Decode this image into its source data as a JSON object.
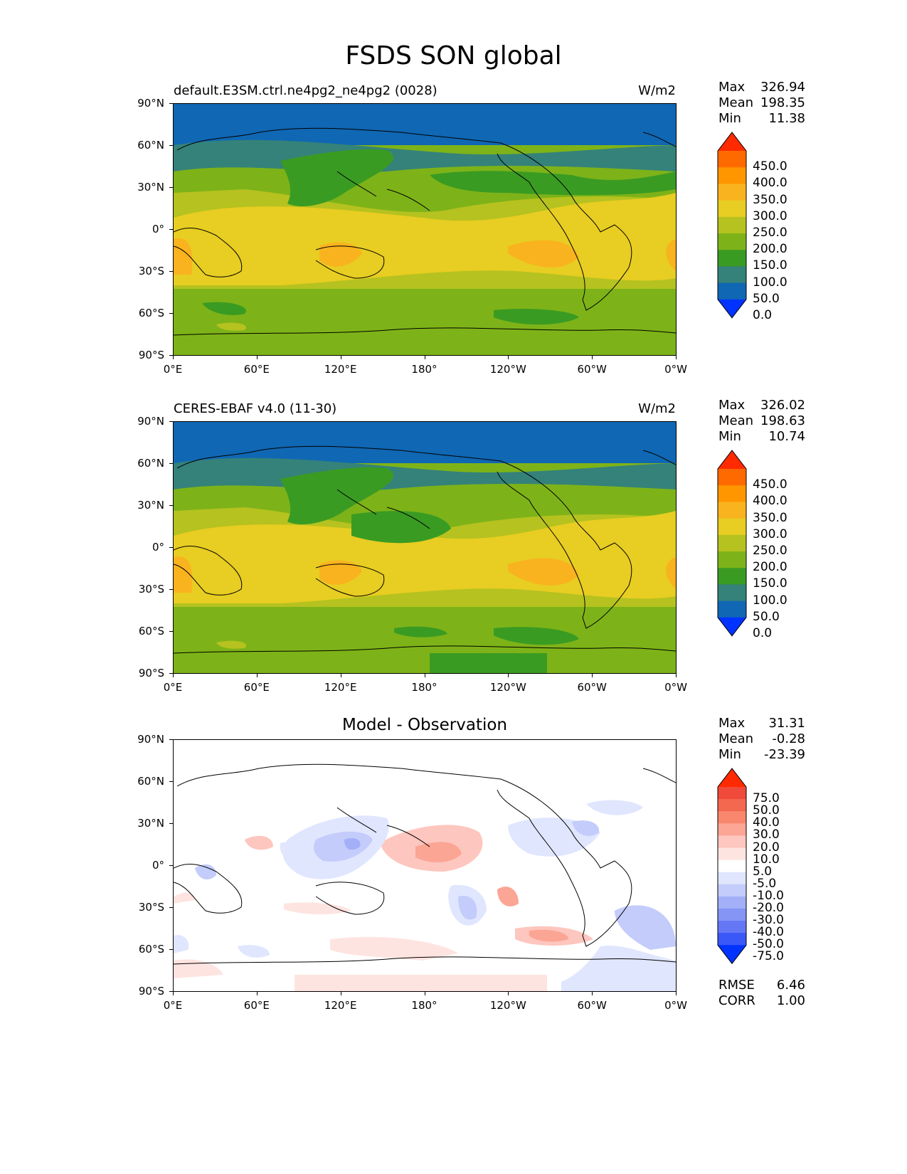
{
  "title": "FSDS SON global",
  "panels": [
    {
      "label": "default.E3SM.ctrl.ne4pg2_ne4pg2 (0028)",
      "units": "W/m2",
      "stats": {
        "max_label": "Max",
        "max": "326.94",
        "mean_label": "Mean",
        "mean": "198.35",
        "min_label": "Min",
        "min": "11.38"
      }
    },
    {
      "label": "CERES-EBAF v4.0 (11-30)",
      "units": "W/m2",
      "stats": {
        "max_label": "Max",
        "max": "326.02",
        "mean_label": "Mean",
        "mean": "198.63",
        "min_label": "Min",
        "min": "10.74"
      }
    },
    {
      "title": "Model - Observation",
      "stats": {
        "max_label": "Max",
        "max": "31.31",
        "mean_label": "Mean",
        "mean": "-0.28",
        "min_label": "Min",
        "min": "-23.39"
      },
      "rmse_label": "RMSE",
      "rmse": "6.46",
      "corr_label": "CORR",
      "corr": "1.00"
    }
  ],
  "lat_ticks": [
    "90°N",
    "60°N",
    "30°N",
    "0°",
    "30°S",
    "60°S",
    "90°S"
  ],
  "lon_ticks": [
    "0°E",
    "60°E",
    "120°E",
    "180°",
    "120°W",
    "60°W",
    "0°W"
  ],
  "colorbar_main": {
    "levels": [
      "450.0",
      "400.0",
      "350.0",
      "300.0",
      "250.0",
      "200.0",
      "150.0",
      "100.0",
      "50.0",
      "0.0"
    ],
    "colors": [
      "#ff2a00",
      "#ff6a00",
      "#ff9600",
      "#f9b31e",
      "#e8cd22",
      "#b5c21f",
      "#7db318",
      "#3a9b23",
      "#34827a",
      "#1067b3",
      "#0033ff"
    ]
  },
  "colorbar_diff": {
    "levels": [
      "75.0",
      "50.0",
      "40.0",
      "30.0",
      "20.0",
      "10.0",
      "5.0",
      "-5.0",
      "-10.0",
      "-20.0",
      "-30.0",
      "-40.0",
      "-50.0",
      "-75.0"
    ],
    "colors": [
      "#ff2a00",
      "#f04a3a",
      "#f46850",
      "#f8876e",
      "#fba595",
      "#fdc6be",
      "#fee4e0",
      "#ffffff",
      "#e0e6fe",
      "#c3ccfa",
      "#a3b0f8",
      "#8595f6",
      "#6478f6",
      "#3a57f8",
      "#0033ff"
    ]
  },
  "chart_data": [
    {
      "type": "heatmap",
      "title": "default.E3SM.ctrl.ne4pg2_ne4pg2 (0028)",
      "units": "W/m2",
      "variable": "FSDS",
      "season": "SON",
      "xlabel": "",
      "ylabel": "",
      "xlim": [
        0,
        360
      ],
      "ylim": [
        -90,
        90
      ],
      "lat": [
        85,
        75,
        65,
        55,
        45,
        35,
        25,
        15,
        5,
        -5,
        -15,
        -25,
        -35,
        -45,
        -55,
        -65,
        -75,
        -85
      ],
      "zonal_mean_approx": [
        30,
        40,
        80,
        120,
        160,
        200,
        245,
        265,
        260,
        270,
        280,
        275,
        240,
        200,
        170,
        180,
        185,
        185
      ],
      "max": 326.94,
      "mean": 198.35,
      "min": 11.38
    },
    {
      "type": "heatmap",
      "title": "CERES-EBAF v4.0 (11-30)",
      "units": "W/m2",
      "xlabel": "",
      "ylabel": "",
      "xlim": [
        0,
        360
      ],
      "ylim": [
        -90,
        90
      ],
      "lat": [
        85,
        75,
        65,
        55,
        45,
        35,
        25,
        15,
        5,
        -5,
        -15,
        -25,
        -35,
        -45,
        -55,
        -65,
        -75,
        -85
      ],
      "zonal_mean_approx": [
        30,
        40,
        80,
        120,
        160,
        200,
        245,
        265,
        260,
        270,
        280,
        275,
        240,
        200,
        170,
        175,
        180,
        160
      ],
      "max": 326.02,
      "mean": 198.63,
      "min": 10.74
    },
    {
      "type": "heatmap",
      "title": "Model - Observation",
      "units": "W/m2",
      "xlabel": "",
      "ylabel": "",
      "xlim": [
        0,
        360
      ],
      "ylim": [
        -90,
        90
      ],
      "max": 31.31,
      "mean": -0.28,
      "min": -23.39,
      "rmse": 6.46,
      "corr": 1.0
    }
  ]
}
